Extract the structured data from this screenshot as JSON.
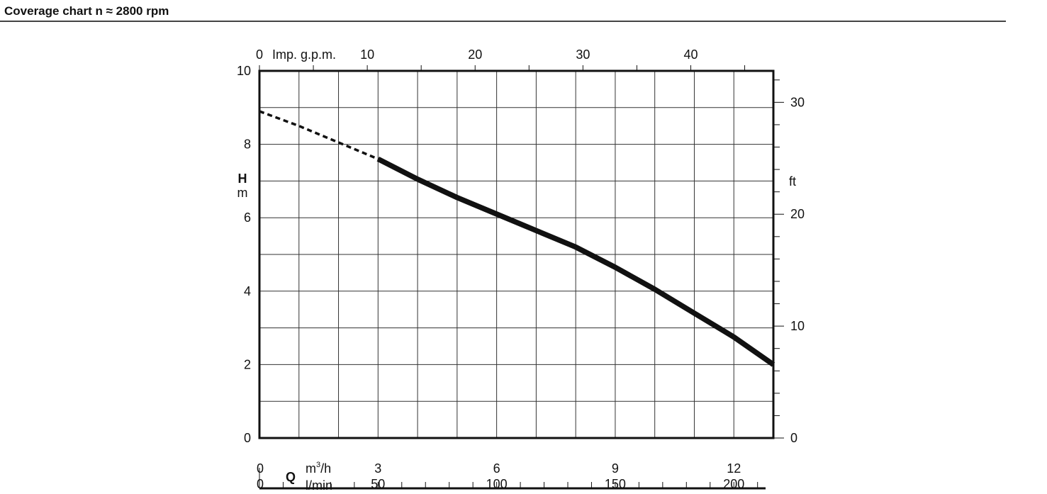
{
  "page": {
    "title": "Coverage chart n ≈ 2800 rpm"
  },
  "chart_data": {
    "type": "line",
    "title": "Coverage chart n ≈ 2800 rpm",
    "x_axis": {
      "name": "Q",
      "unit": "m³/h",
      "unit_base": "m",
      "unit_sup": "3",
      "unit_tail": "/h",
      "range": [
        0,
        13
      ],
      "ticks": [
        0,
        3,
        6,
        9,
        12
      ],
      "minor_step": 1
    },
    "x_axis_lmin": {
      "unit": "l/min",
      "range": [
        0,
        216.67
      ],
      "ticks": [
        0,
        50,
        100,
        150,
        200
      ],
      "minor_step": 10
    },
    "x_axis_top": {
      "unit": "Imp. g.p.m.",
      "range": [
        0,
        47.66
      ],
      "ticks": [
        0,
        10,
        20,
        30,
        40
      ],
      "minor_step": 5
    },
    "y_axis": {
      "name": "H",
      "unit": "m",
      "range": [
        0,
        10
      ],
      "ticks": [
        0,
        2,
        4,
        6,
        8,
        10
      ],
      "grid_step": 1
    },
    "y_axis_right": {
      "unit": "ft",
      "range": [
        0,
        32.81
      ],
      "ticks": [
        0,
        10,
        20,
        30
      ],
      "minor_step": 2
    },
    "grid": true,
    "series": [
      {
        "style": "dashed",
        "x": [
          0,
          1,
          2,
          3
        ],
        "y": [
          8.9,
          8.5,
          8.05,
          7.6
        ]
      },
      {
        "style": "solid",
        "x": [
          3,
          4,
          5,
          6,
          7,
          8,
          9,
          10,
          11,
          12,
          13
        ],
        "y": [
          7.6,
          7.05,
          6.55,
          6.1,
          5.65,
          5.2,
          4.65,
          4.05,
          3.4,
          2.75,
          2.0
        ]
      }
    ]
  }
}
